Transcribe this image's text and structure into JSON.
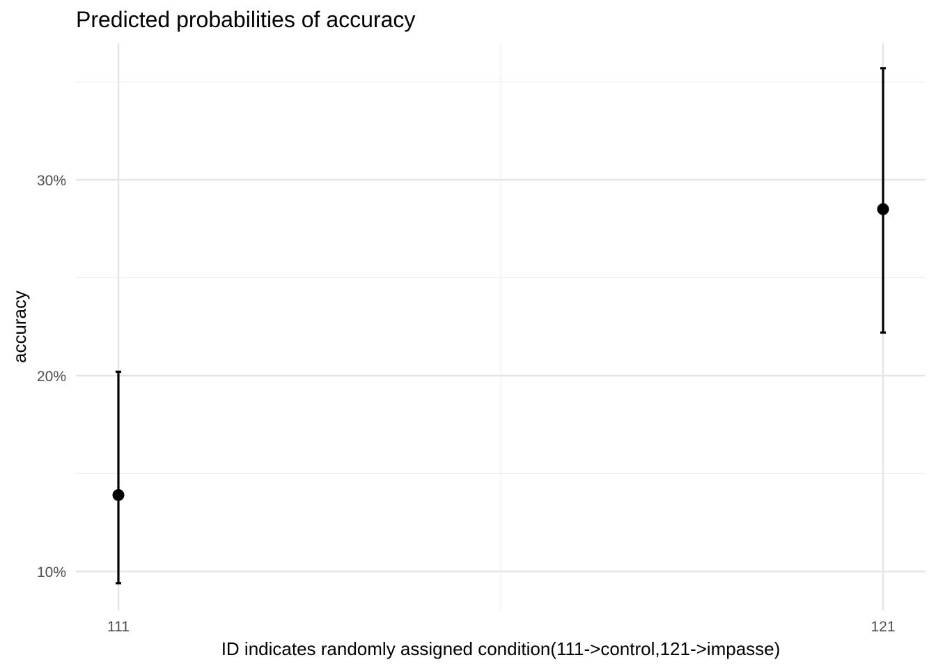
{
  "chart_data": {
    "type": "scatter",
    "title": "Predicted probabilities of accuracy",
    "xlabel": "ID indicates randomly assigned condition(111->control,121->impasse)",
    "ylabel": "accuracy",
    "categories": [
      "111",
      "121"
    ],
    "y_ticks": [
      0.1,
      0.2,
      0.3
    ],
    "y_tick_labels": [
      "10%",
      "20%",
      "30%"
    ],
    "y_minor_ticks": [
      0.15,
      0.25,
      0.35
    ],
    "ylim": [
      0.082,
      0.371
    ],
    "grid": true,
    "series": [
      {
        "values": [
          0.139,
          0.285
        ],
        "ci_low": [
          0.094,
          0.222
        ],
        "ci_high": [
          0.202,
          0.357
        ]
      }
    ],
    "colors": {
      "point": "#000000",
      "grid": "#e5e5e5",
      "tick_text": "#4d4d4d"
    }
  }
}
